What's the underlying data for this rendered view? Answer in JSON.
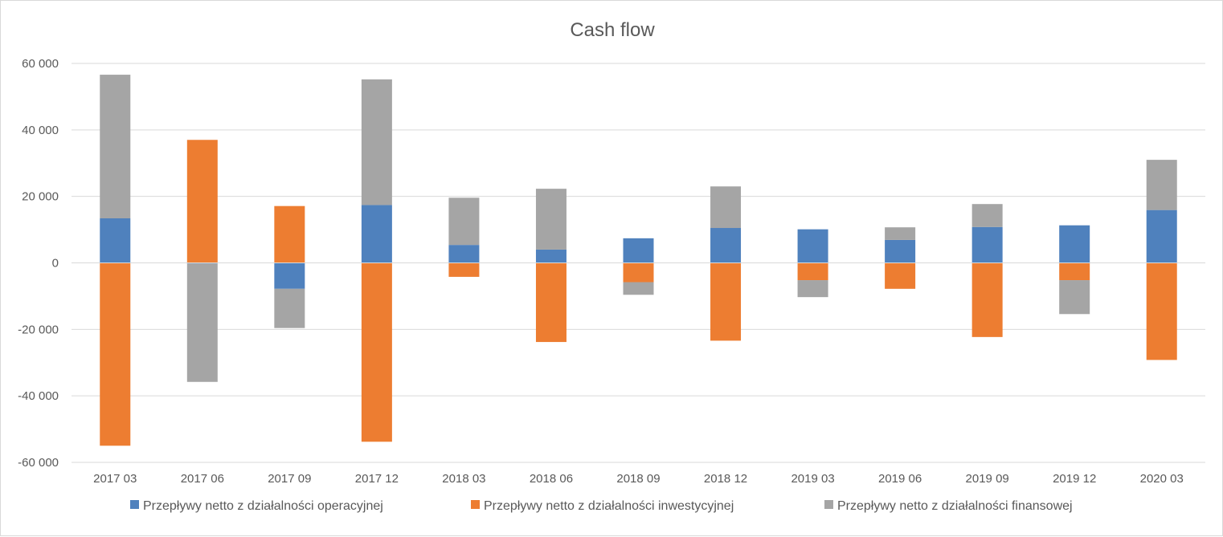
{
  "chart_data": {
    "type": "bar",
    "stacked": true,
    "title": "Cash flow",
    "xlabel": "",
    "ylabel": "",
    "ylim": [
      -60000,
      60000
    ],
    "y_ticks": [
      60000,
      40000,
      20000,
      0,
      -20000,
      -40000,
      -60000
    ],
    "y_tick_labels": [
      "60 000",
      "40 000",
      "20 000",
      "0",
      "-20 000",
      "-40 000",
      "-60 000"
    ],
    "grid": true,
    "legend_position": "bottom",
    "categories": [
      "2017 03",
      "2017 06",
      "2017 09",
      "2017 12",
      "2018 03",
      "2018 06",
      "2018 09",
      "2018 12",
      "2019 03",
      "2019 06",
      "2019 09",
      "2019 12",
      "2020 03"
    ],
    "series": [
      {
        "name": "Przepływy netto z działalności operacyjnej",
        "color": "#4f81bd",
        "values": [
          13400,
          -200,
          -7800,
          17400,
          5400,
          4000,
          7400,
          10500,
          10100,
          6900,
          10800,
          11300,
          15900
        ]
      },
      {
        "name": "Przepływy netto z działalności inwestycyjnej",
        "color": "#ed7d31",
        "values": [
          -55000,
          37000,
          17100,
          -53800,
          -4200,
          -23800,
          -5800,
          -23400,
          -5200,
          -7800,
          -22300,
          -5200,
          -29200
        ]
      },
      {
        "name": "Przepływy netto z działalności finansowej",
        "color": "#a5a5a5",
        "values": [
          43200,
          -35600,
          -11800,
          37800,
          14200,
          18300,
          -3800,
          12500,
          -5100,
          3800,
          6900,
          -10200,
          15100
        ]
      }
    ]
  }
}
